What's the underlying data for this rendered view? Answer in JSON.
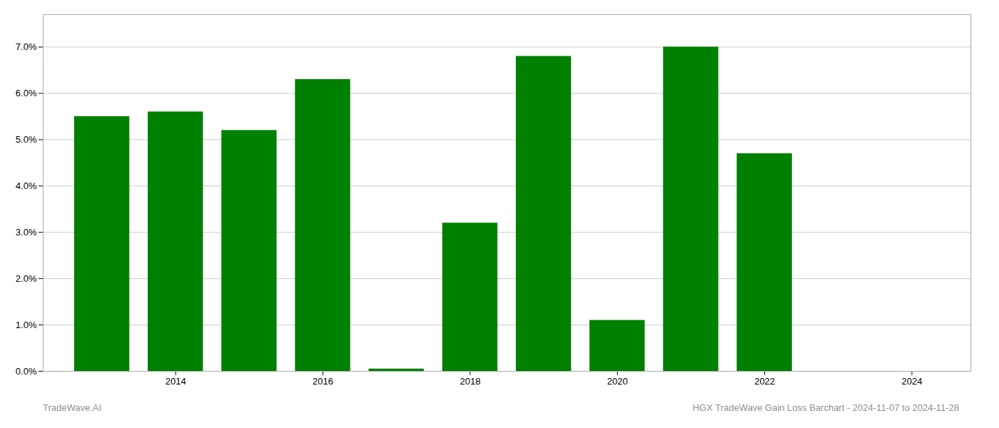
{
  "chart_data": {
    "type": "bar",
    "x": [
      2013,
      2014,
      2015,
      2016,
      2017,
      2018,
      2019,
      2020,
      2021,
      2022
    ],
    "values": [
      0.055,
      0.056,
      0.052,
      0.063,
      0.0005,
      0.032,
      0.068,
      0.011,
      0.07,
      0.047
    ],
    "color": "#008000",
    "xlim": [
      2012.2,
      2024.8
    ],
    "xticks": [
      2014,
      2016,
      2018,
      2020,
      2022,
      2024
    ],
    "ylim": [
      0.0,
      0.077
    ],
    "yticks": [
      {
        "value": 0.0,
        "label": "0.0%"
      },
      {
        "value": 0.01,
        "label": "1.0%"
      },
      {
        "value": 0.02,
        "label": "2.0%"
      },
      {
        "value": 0.03,
        "label": "3.0%"
      },
      {
        "value": 0.04,
        "label": "4.0%"
      },
      {
        "value": 0.05,
        "label": "5.0%"
      },
      {
        "value": 0.06,
        "label": "6.0%"
      },
      {
        "value": 0.07,
        "label": "7.0%"
      }
    ],
    "grid": true,
    "annotations": [
      "TradeWave.AI",
      "HGX TradeWave Gain Loss Barchart - 2024-11-07 to 2024-11-28"
    ]
  }
}
